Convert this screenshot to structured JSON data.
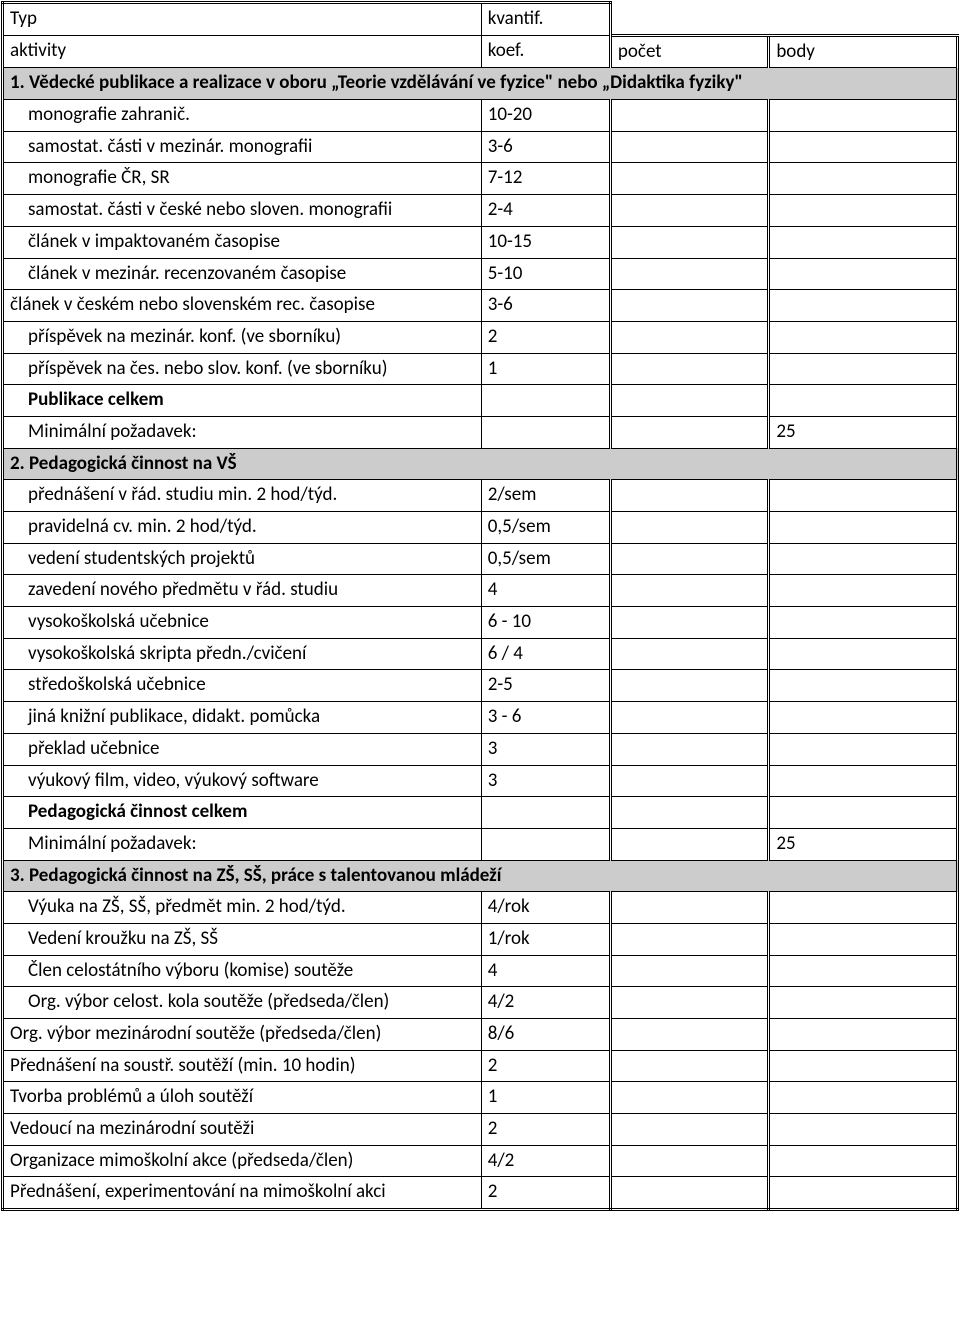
{
  "header": {
    "typ": "Typ",
    "aktivity": "aktivity",
    "kvantif": "kvantif.",
    "koef": "koef.",
    "pocet": "počet",
    "body": "body"
  },
  "s1": {
    "title": "1. Vědecké publikace a realizace v oboru „Teorie vzdělávání ve fyzice\" nebo „Didaktika fyziky\"",
    "rows": [
      {
        "label": "monografie zahranič.",
        "koef": "10-20",
        "ind": true
      },
      {
        "label": "samostat. části v mezinár. monografii",
        "koef": "3-6",
        "ind": true
      },
      {
        "label": "monografie  ČR, SR",
        "koef": "7-12",
        "ind": true
      },
      {
        "label": "samostat. části v české nebo sloven. monografii",
        "koef": "2-4",
        "ind": true
      },
      {
        "label": "článek v impaktovaném časopise",
        "koef": "10-15",
        "ind": true
      },
      {
        "label": "článek v mezinár. recenzovaném časopise",
        "koef": "5-10",
        "ind": true
      },
      {
        "label": "článek v českém nebo slovenském rec. časopise",
        "koef": "3-6",
        "ind": false
      },
      {
        "label": "příspěvek na mezinár. konf. (ve sborníku)",
        "koef": "2",
        "ind": true
      },
      {
        "label": "příspěvek na čes. nebo slov. konf. (ve sborníku)",
        "koef": "1",
        "ind": true
      }
    ],
    "total": "Publikace celkem",
    "min_label": "Minimální požadavek:",
    "min_val": "25"
  },
  "s2": {
    "title": "2. Pedagogická činnost na VŠ",
    "rows": [
      {
        "label": "přednášení v řád. studiu min. 2 hod/týd.",
        "koef": "2/sem",
        "ind": true
      },
      {
        "label": "pravidelná cv. min. 2 hod/týd.",
        "koef": "0,5/sem",
        "ind": true
      },
      {
        "label": "vedení studentských projektů",
        "koef": "0,5/sem",
        "ind": true
      },
      {
        "label": "zavedení nového předmětu v řád. studiu",
        "koef": "4",
        "ind": true
      },
      {
        "label": "vysokoškolská učebnice",
        "koef": "6 - 10",
        "ind": true
      },
      {
        "label": "vysokoškolská skripta předn./cvičení",
        "koef": "6 / 4",
        "ind": true
      },
      {
        "label": "středoškolská učebnice",
        "koef": "2-5",
        "ind": true
      },
      {
        "label": "jiná knižní publikace, didakt. pomůcka",
        "koef": "3 - 6",
        "ind": true
      },
      {
        "label": "překlad učebnice",
        "koef": "3",
        "ind": true
      },
      {
        "label": "výukový film, video, výukový software",
        "koef": "3",
        "ind": true
      }
    ],
    "total": "Pedagogická činnost celkem",
    "min_label": "Minimální požadavek:",
    "min_val": "25"
  },
  "s3": {
    "title": "3. Pedagogická činnost na ZŠ, SŠ, práce s talentovanou mládeží",
    "rows": [
      {
        "label": "Výuka na ZŠ, SŠ, předmět min. 2 hod/týd.",
        "koef": "4/rok",
        "ind": true
      },
      {
        "label": "Vedení kroužku na ZŠ, SŠ",
        "koef": "1/rok",
        "ind": true
      },
      {
        "label": "Člen celostátního výboru (komise) soutěže",
        "koef": "4",
        "ind": true
      },
      {
        "label": "Org. výbor celost. kola soutěže (předseda/člen)",
        "koef": "4/2",
        "ind": true
      },
      {
        "label": "Org. výbor mezinárodní soutěže (předseda/člen)",
        "koef": "8/6",
        "ind": false
      },
      {
        "label": "Přednášení na soustř. soutěží (min. 10 hodin)",
        "koef": "2",
        "ind": false
      },
      {
        "label": "Tvorba problémů a úloh soutěží",
        "koef": "1",
        "ind": false
      },
      {
        "label": "Vedoucí na mezinárodní soutěži",
        "koef": "2",
        "ind": false
      },
      {
        "label": "Organizace mimoškolní akce (předseda/člen)",
        "koef": "4/2",
        "ind": false
      },
      {
        "label": "Přednášení, experimentování na mimoškolní akci",
        "koef": "2",
        "ind": false
      }
    ]
  }
}
